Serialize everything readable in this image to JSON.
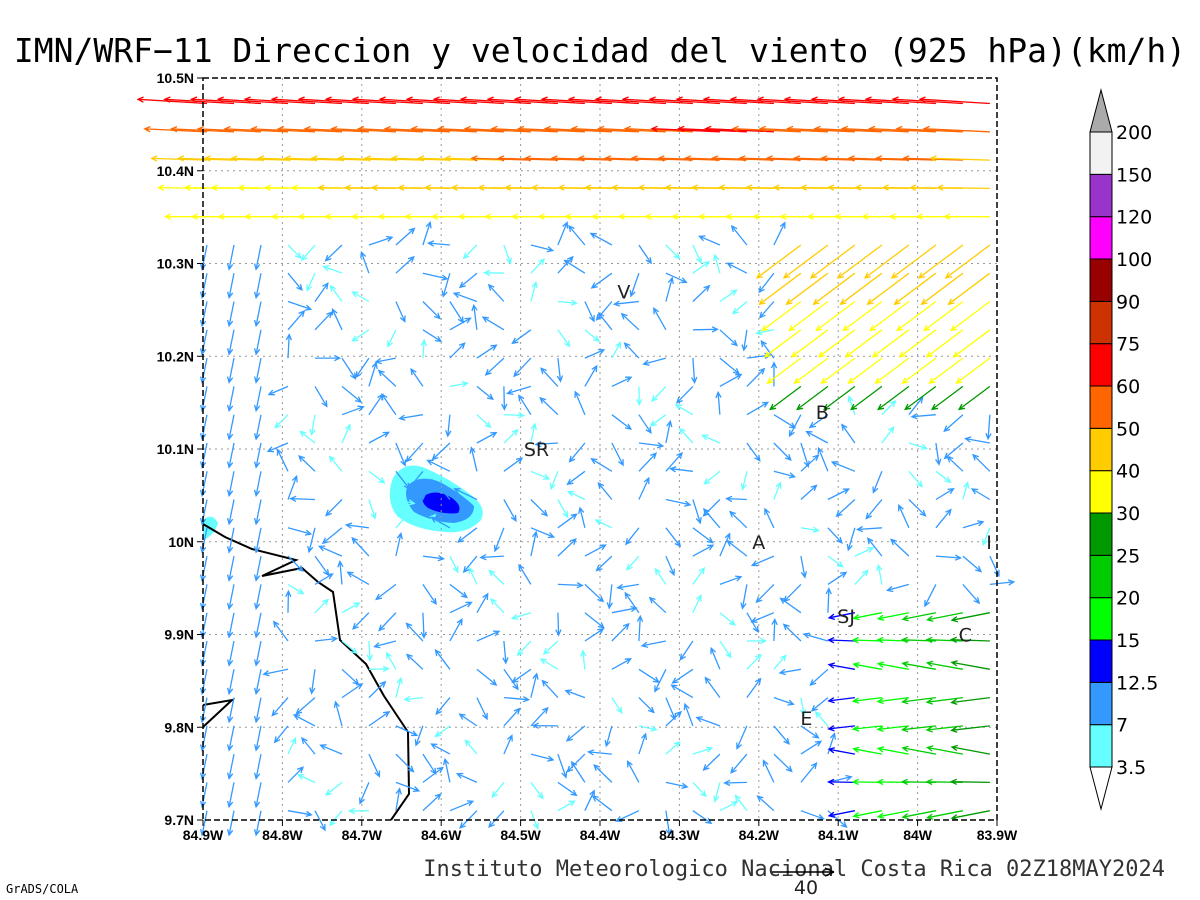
{
  "title": "IMN/WRF−11 Direccion y velocidad del viento (925 hPa)(km/h)",
  "footer": "Instituto Meteorologico Nacional Costa Rica 02Z18MAY2024",
  "credit": "GrADS/COLA",
  "reference_vector": {
    "label": "40",
    "speed": 40
  },
  "axes": {
    "x_ticks": [
      "84.9W",
      "84.8W",
      "84.7W",
      "84.6W",
      "84.5W",
      "84.4W",
      "84.3W",
      "84.2W",
      "84.1W",
      "84W",
      "83.9W"
    ],
    "y_ticks": [
      "10.5N",
      "10.4N",
      "10.3N",
      "10.2N",
      "10.1N",
      "10N",
      "9.9N",
      "9.8N",
      "9.7N"
    ],
    "lon_range": [
      -84.9,
      -83.9
    ],
    "lat_range": [
      9.7,
      10.5
    ],
    "grid": true
  },
  "colorbar": {
    "labels": [
      "3.5",
      "7",
      "12.5",
      "15",
      "20",
      "25",
      "30",
      "40",
      "50",
      "60",
      "75",
      "90",
      "100",
      "120",
      "150",
      "200"
    ],
    "colors": [
      "#66ffff",
      "#3399ff",
      "#0000ff",
      "#00ff00",
      "#00cc00",
      "#009900",
      "#ffff00",
      "#ffcc00",
      "#ff6600",
      "#ff0000",
      "#cc3300",
      "#990000",
      "#ff00ff",
      "#9933cc",
      "#f2f2f2",
      "#aaaaaa"
    ]
  },
  "places": [
    {
      "label": "V",
      "lon": -84.37,
      "lat": 10.27
    },
    {
      "label": "B",
      "lon": -84.12,
      "lat": 10.14
    },
    {
      "label": "SR",
      "lon": -84.48,
      "lat": 10.1
    },
    {
      "label": "A",
      "lon": -84.2,
      "lat": 10.0
    },
    {
      "label": "I",
      "lon": -83.91,
      "lat": 10.0
    },
    {
      "label": "SJ",
      "lon": -84.09,
      "lat": 9.92
    },
    {
      "label": "C",
      "lon": -83.94,
      "lat": 9.9
    },
    {
      "label": "E",
      "lon": -84.14,
      "lat": 9.81
    }
  ]
}
